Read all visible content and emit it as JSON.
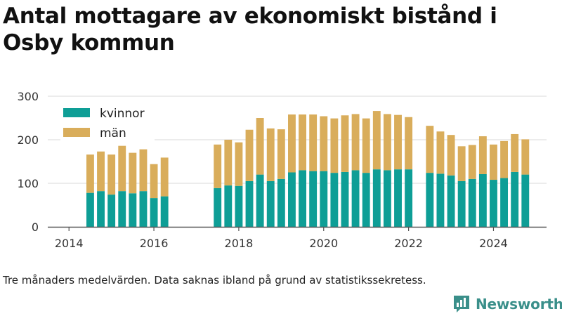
{
  "title": "Antal mottagare av ekonomiskt bistånd i Osby kommun",
  "caption": "Tre månaders medelvärden. Data saknas ibland på grund av statistikssekretess.",
  "brand": {
    "name": "Newsworthy",
    "logo_icon": "bar-chart-speech-bubble-icon"
  },
  "colors": {
    "kvinnor": "#0e9e96",
    "man": "#d9ad5b",
    "axis": "#555555",
    "grid": "#d8d8d8"
  },
  "chart_data": {
    "type": "bar",
    "stacked": true,
    "ylim": [
      0,
      300
    ],
    "yticks": [
      0,
      100,
      200,
      300
    ],
    "xticks": [
      2014,
      2016,
      2018,
      2020,
      2022,
      2024
    ],
    "xlim": [
      2013.5,
      2025.25
    ],
    "grid": "horizontal",
    "legend_position": "top-left",
    "x": [
      2014.5,
      2014.75,
      2015.0,
      2015.25,
      2015.5,
      2015.75,
      2016.0,
      2016.25,
      2017.5,
      2017.75,
      2018.0,
      2018.25,
      2018.5,
      2018.75,
      2019.0,
      2019.25,
      2019.5,
      2019.75,
      2020.0,
      2020.25,
      2020.5,
      2020.75,
      2021.0,
      2021.25,
      2021.5,
      2021.75,
      2022.0,
      2022.5,
      2022.75,
      2023.0,
      2023.25,
      2023.5,
      2023.75,
      2024.0,
      2024.25,
      2024.5,
      2024.75
    ],
    "series": [
      {
        "name": "kvinnor",
        "values": [
          78,
          82,
          74,
          82,
          77,
          82,
          66,
          70,
          89,
          95,
          94,
          105,
          120,
          105,
          110,
          125,
          130,
          128,
          128,
          124,
          126,
          130,
          124,
          132,
          130,
          132,
          132,
          124,
          122,
          118,
          105,
          110,
          121,
          108,
          112,
          126,
          120
        ]
      },
      {
        "name": "män",
        "values": [
          88,
          91,
          92,
          104,
          93,
          96,
          78,
          89,
          100,
          105,
          100,
          118,
          130,
          121,
          114,
          133,
          128,
          130,
          126,
          125,
          130,
          129,
          125,
          134,
          129,
          125,
          120,
          108,
          97,
          93,
          80,
          78,
          87,
          81,
          85,
          87,
          81
        ]
      }
    ]
  }
}
